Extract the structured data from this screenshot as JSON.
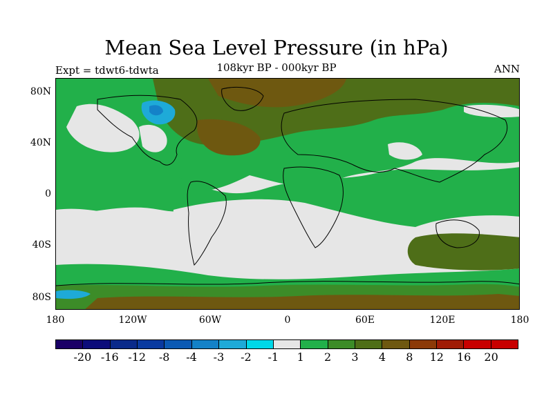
{
  "title": "Mean Sea Level Pressure (in hPa)",
  "subtitle_left": "Expt = tdwt6-tdwta",
  "subtitle_center": "108kyr BP - 000kyr BP",
  "subtitle_right": "ANN",
  "lat_labels": [
    "80N",
    "40N",
    "0",
    "40S",
    "80S"
  ],
  "lon_labels": [
    "180",
    "120W",
    "60W",
    "0",
    "60E",
    "120E",
    "180"
  ],
  "colorbar": {
    "labels": [
      "-20",
      "-16",
      "-12",
      "-8",
      "-4",
      "-3",
      "-2",
      "-1",
      "1",
      "2",
      "3",
      "4",
      "8",
      "12",
      "16",
      "20"
    ],
    "colors": [
      "#1a0066",
      "#0c0c7a",
      "#0a2a8a",
      "#0a3aa0",
      "#0c5ab4",
      "#1482c8",
      "#1eaad8",
      "#00d8e8",
      "#e6e6e6",
      "#22b04a",
      "#3c8c28",
      "#4e6e18",
      "#6e5810",
      "#8c3a08",
      "#a01c06",
      "#c80000"
    ]
  },
  "chart_data": {
    "type": "map",
    "title": "Mean Sea Level Pressure (in hPa)",
    "projection": "cylindrical-equidistant",
    "lon_range": [
      -180,
      180
    ],
    "lat_range": [
      -90,
      90
    ],
    "contour_levels": [
      -20,
      -16,
      -12,
      -8,
      -4,
      -3,
      -2,
      -1,
      1,
      2,
      3,
      4,
      8,
      12,
      16,
      20
    ],
    "experiment": "tdwt6-tdwta",
    "period": "108kyr BP - 000kyr BP",
    "season": "ANN"
  }
}
